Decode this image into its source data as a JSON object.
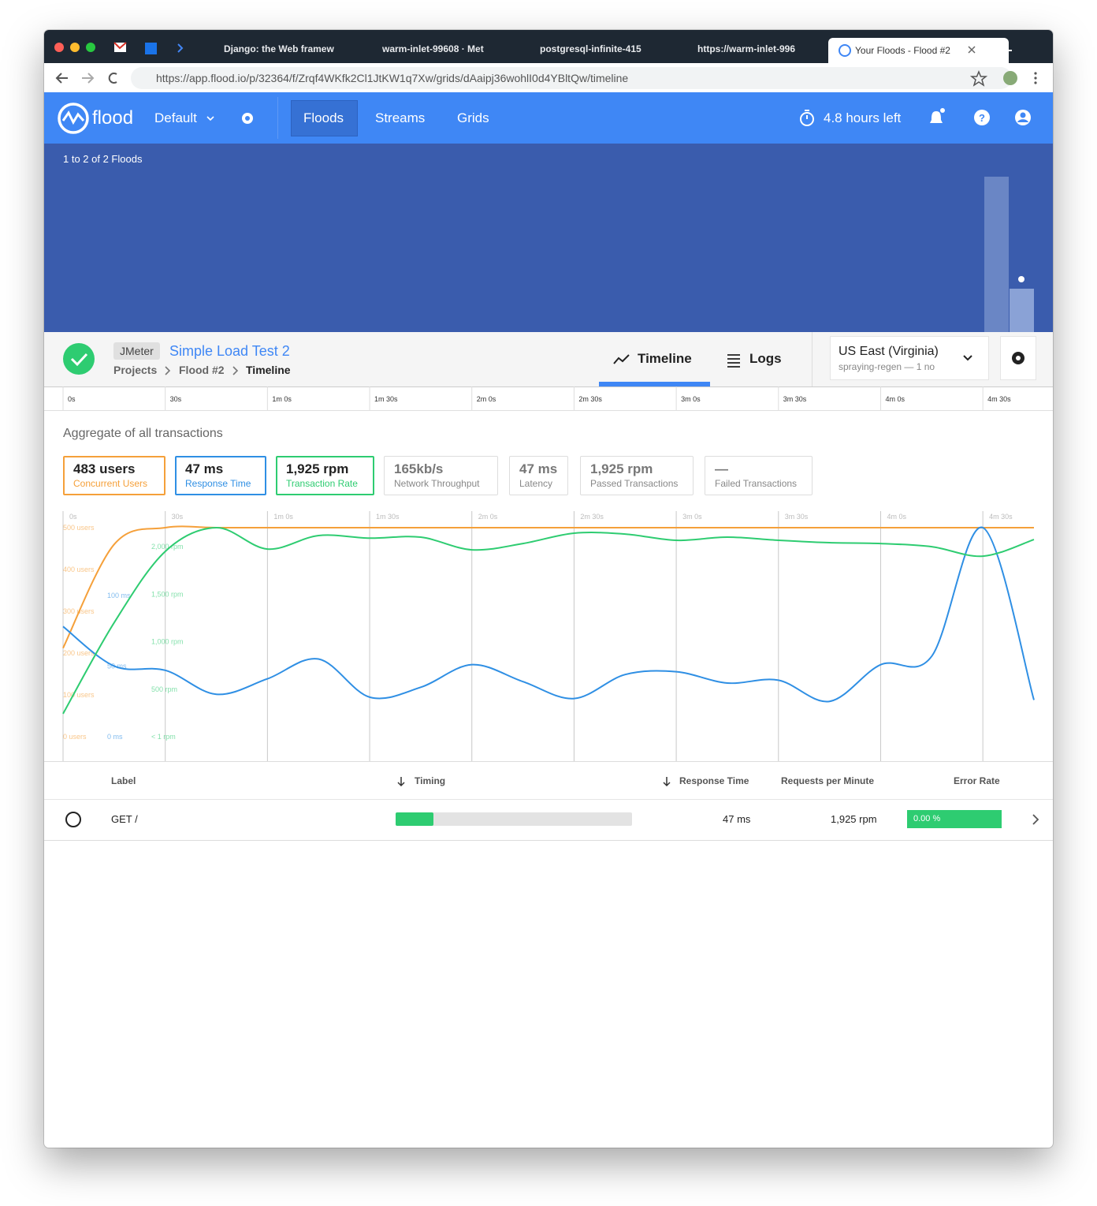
{
  "browser": {
    "tabs": [
      "Django: the Web framew",
      "warm-inlet-99608 · Met",
      "postgresql-infinite-415",
      "https://warm-inlet-996",
      "Your Floods - Flood #2"
    ],
    "url": "https://app.flood.io/p/32364/f/Zrqf4WKfk2Cl1JtKW1q7Xw/grids/dAaipj36wohlI0d4YBltQw/timeline"
  },
  "nav": {
    "brand": "flood",
    "project": "Default",
    "links": [
      "Floods",
      "Streams",
      "Grids"
    ],
    "time_left": "4.8 hours left"
  },
  "floods_panel": {
    "count": "1 to 2 of 2 Floods"
  },
  "flood": {
    "tool": "JMeter",
    "name": "Simple Load Test 2",
    "breadcrumb": [
      "Projects",
      "Flood #2",
      "Timeline"
    ],
    "tabs": [
      "Timeline",
      "Logs"
    ],
    "region": "US East (Virginia)",
    "grid": "spraying-regen — 1 no"
  },
  "aggregate_title": "Aggregate of all transactions",
  "metrics": [
    {
      "value": "483 users",
      "label": "Concurrent Users"
    },
    {
      "value": "47 ms",
      "label": "Response Time"
    },
    {
      "value": "1,925 rpm",
      "label": "Transaction Rate"
    },
    {
      "value": "165kb/s",
      "label": "Network Throughput"
    },
    {
      "value": "47 ms",
      "label": "Latency"
    },
    {
      "value": "1,925 rpm",
      "label": "Passed Transactions"
    },
    {
      "value": "—",
      "label": "Failed Transactions"
    }
  ],
  "chart_data": {
    "type": "line",
    "x": [
      0,
      15,
      30,
      45,
      60,
      75,
      90,
      105,
      120,
      135,
      150,
      165,
      180,
      195,
      210,
      225,
      240,
      255,
      270,
      285
    ],
    "xlim": [
      0,
      285
    ],
    "xticks": [
      {
        "value": 0,
        "label": "0s"
      },
      {
        "value": 30,
        "label": "30s"
      },
      {
        "value": 60,
        "label": "1m 0s"
      },
      {
        "value": 90,
        "label": "1m 30s"
      },
      {
        "value": 120,
        "label": "2m 0s"
      },
      {
        "value": 150,
        "label": "2m 30s"
      },
      {
        "value": 180,
        "label": "3m 0s"
      },
      {
        "value": 210,
        "label": "3m 30s"
      },
      {
        "value": 240,
        "label": "4m 0s"
      },
      {
        "value": 270,
        "label": "4m 30s"
      }
    ],
    "grid": true,
    "series": [
      {
        "color": "#f5a03a",
        "ylim": [
          0,
          500
        ],
        "yticks": [
          {
            "value": 0,
            "label": "0 users"
          },
          {
            "value": 100,
            "label": "100 users"
          },
          {
            "value": 200,
            "label": "200 users"
          },
          {
            "value": 300,
            "label": "300 users"
          },
          {
            "value": 400,
            "label": "400 users"
          },
          {
            "value": 500,
            "label": "500 users"
          }
        ],
        "values": [
          212,
          460,
          500,
          500,
          500,
          500,
          500,
          500,
          500,
          500,
          500,
          500,
          500,
          500,
          500,
          500,
          500,
          500,
          500,
          500
        ]
      },
      {
        "color": "#2f8fe4",
        "ylim": [
          0,
          148
        ],
        "yticks": [
          {
            "value": 0,
            "label": "0 ms"
          },
          {
            "value": 50,
            "label": "50 ms"
          },
          {
            "value": 100,
            "label": "100 ms"
          }
        ],
        "values": [
          78,
          50,
          47,
          30,
          41,
          55,
          28,
          35,
          51,
          39,
          27,
          44,
          46,
          38,
          40,
          25,
          51,
          57,
          148,
          26
        ]
      },
      {
        "color": "#2ecc71",
        "ylim": [
          0,
          2200
        ],
        "yticks": [
          {
            "value": 0,
            "label": "< 1 rpm"
          },
          {
            "value": 500,
            "label": "500 rpm"
          },
          {
            "value": 1000,
            "label": "1,000 rpm"
          },
          {
            "value": 1500,
            "label": "1,500 rpm"
          },
          {
            "value": 2000,
            "label": "2,000 rpm"
          }
        ],
        "values": [
          242,
          1200,
          1950,
          2200,
          1975,
          2117,
          2090,
          2100,
          1967,
          2033,
          2142,
          2133,
          2067,
          2100,
          2067,
          2042,
          2033,
          2000,
          1900,
          2075
        ]
      }
    ]
  },
  "table": {
    "headers": [
      "Label",
      "Timing",
      "Response Time",
      "Requests per Minute",
      "Error Rate"
    ],
    "rows": [
      [
        "GET /",
        "47 ms",
        "1,925 rpm",
        "0.00 %"
      ]
    ]
  }
}
